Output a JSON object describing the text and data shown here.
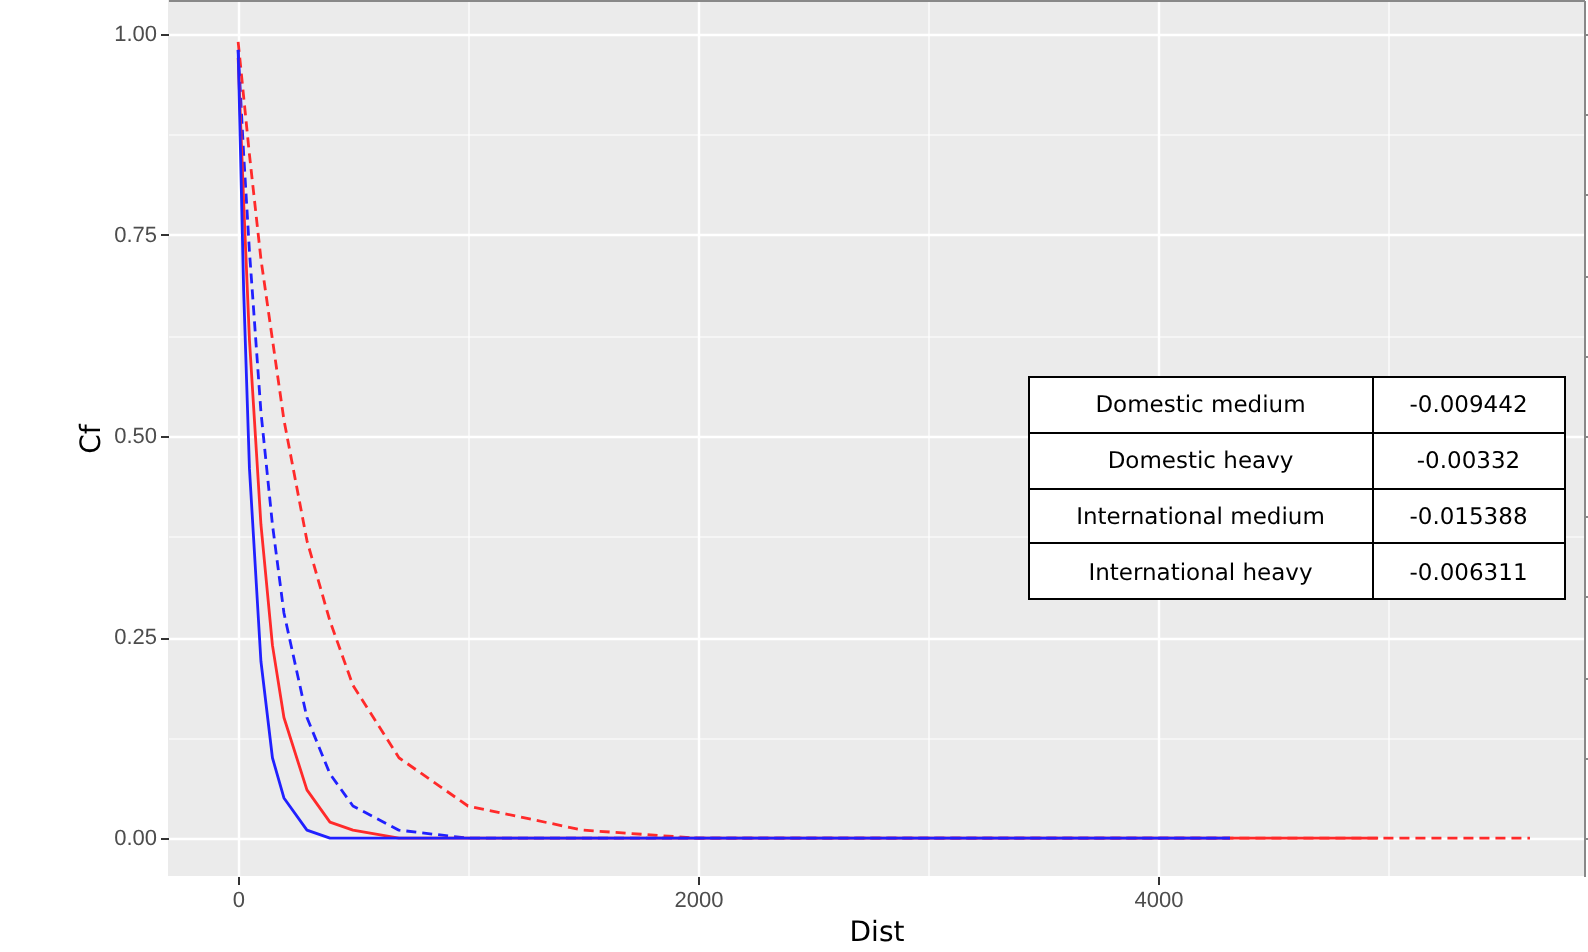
{
  "chart_data": {
    "type": "line",
    "xlabel": "Dist",
    "ylabel": "Cf",
    "xlim": [
      -304,
      5852
    ],
    "ylim": [
      -0.047,
      1.042
    ],
    "xticks": [
      0,
      {
        "value": 1000,
        "label": null
      },
      2000,
      {
        "value": 3000,
        "label": null
      },
      4000,
      {
        "value": 5000,
        "label": null
      }
    ],
    "yticks": [
      {
        "value": 0,
        "label": "0.00"
      },
      {
        "value": 0.125,
        "label": null
      },
      {
        "value": 0.25,
        "label": "0.25"
      },
      {
        "value": 0.375,
        "label": null
      },
      {
        "value": 0.5,
        "label": "0.50"
      },
      {
        "value": 0.625,
        "label": null
      },
      {
        "value": 0.75,
        "label": "0.75"
      },
      {
        "value": 0.875,
        "label": null
      },
      {
        "value": 1,
        "label": "1.00"
      }
    ],
    "grid": true,
    "series": [
      {
        "color": "#ff2a2a",
        "line_style": "dashed",
        "x": [
          1,
          50,
          100,
          200,
          300,
          400,
          500,
          700,
          1000,
          1500,
          2000,
          3000,
          5617
        ],
        "values": [
          0.99,
          0.85,
          0.72,
          0.52,
          0.37,
          0.27,
          0.19,
          0.1,
          0.04,
          0.01,
          0,
          0,
          0
        ]
      },
      {
        "color": "#2020ff",
        "line_style": "dashed",
        "x": [
          1,
          25,
          50,
          100,
          150,
          200,
          300,
          400,
          500,
          700,
          1000,
          2000,
          4313
        ],
        "values": [
          0.98,
          0.85,
          0.73,
          0.53,
          0.39,
          0.28,
          0.15,
          0.08,
          0.04,
          0.01,
          0,
          0,
          0
        ]
      },
      {
        "color": "#ff2a2a",
        "line_style": "solid",
        "x": [
          1,
          25,
          50,
          100,
          150,
          200,
          300,
          400,
          500,
          700,
          1000,
          2000,
          4957
        ],
        "values": [
          0.97,
          0.79,
          0.62,
          0.39,
          0.24,
          0.15,
          0.06,
          0.02,
          0.01,
          0,
          0,
          0,
          0
        ]
      },
      {
        "color": "#2020ff",
        "line_style": "solid",
        "x": [
          1,
          25,
          50,
          100,
          150,
          200,
          300,
          400,
          500,
          1000,
          2000,
          4313
        ],
        "values": [
          0.98,
          0.68,
          0.46,
          0.22,
          0.1,
          0.05,
          0.01,
          0,
          0,
          0,
          0,
          0
        ]
      }
    ],
    "annotations": [
      "Domestic medium",
      "-0.009442",
      "Domestic heavy",
      "-0.00332",
      "International medium",
      "-0.015388",
      "International heavy",
      "-0.006311"
    ]
  }
}
